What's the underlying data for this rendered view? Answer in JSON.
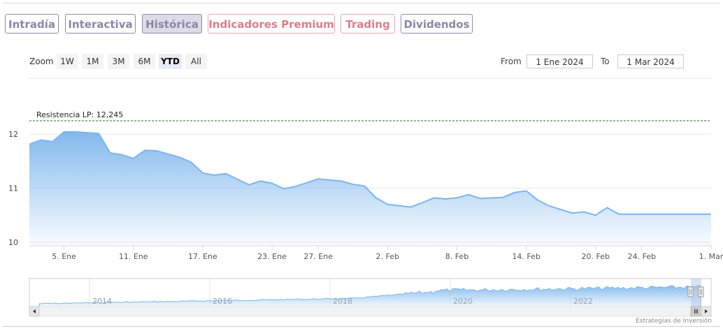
{
  "tabs": [
    {
      "label": "Intradía",
      "style": "muted"
    },
    {
      "label": "Interactiva",
      "style": "muted"
    },
    {
      "label": "Histórica",
      "style": "active"
    },
    {
      "label": "Indicadores Premium",
      "style": "red"
    },
    {
      "label": "Trading",
      "style": "red"
    },
    {
      "label": "Dividendos",
      "style": "muted"
    }
  ],
  "range_selector": {
    "zoom_label": "Zoom",
    "buttons": [
      "1W",
      "1M",
      "3M",
      "6M",
      "YTD",
      "All"
    ],
    "selected": "YTD",
    "from_label": "From",
    "from_value": "1 Ene 2024",
    "to_label": "To",
    "to_value": "1 Mar 2024"
  },
  "credits": "Estrategias de Inversión",
  "colors": {
    "line": "#7cb5ec",
    "area_top": "#7cb5ec",
    "plotline": "#1f6b1f",
    "tab_muted": "#8a86a6",
    "tab_red": "#e07b88"
  },
  "chart_data": {
    "type": "area",
    "title": "",
    "xlabel": "",
    "ylabel": "",
    "ylim": [
      10,
      12.2
    ],
    "yticks": [
      10,
      11,
      12
    ],
    "x_range": [
      "2024-01-02",
      "2024-03-01"
    ],
    "xticks": [
      {
        "date": "2024-01-05",
        "label": "5. Ene"
      },
      {
        "date": "2024-01-11",
        "label": "11. Ene"
      },
      {
        "date": "2024-01-17",
        "label": "17. Ene"
      },
      {
        "date": "2024-01-23",
        "label": "23. Ene"
      },
      {
        "date": "2024-01-27",
        "label": "27. Ene"
      },
      {
        "date": "2024-02-02",
        "label": "2. Feb"
      },
      {
        "date": "2024-02-08",
        "label": "8. Feb"
      },
      {
        "date": "2024-02-14",
        "label": "14. Feb"
      },
      {
        "date": "2024-02-20",
        "label": "20. Feb"
      },
      {
        "date": "2024-02-24",
        "label": "24. Feb"
      },
      {
        "date": "2024-03-01",
        "label": "1. Mar"
      }
    ],
    "series": [
      {
        "x": [
          "2024-01-02",
          "2024-01-03",
          "2024-01-04",
          "2024-01-05",
          "2024-01-06",
          "2024-01-08",
          "2024-01-09",
          "2024-01-10",
          "2024-01-11",
          "2024-01-12",
          "2024-01-13",
          "2024-01-15",
          "2024-01-16",
          "2024-01-17",
          "2024-01-18",
          "2024-01-19",
          "2024-01-21",
          "2024-01-22",
          "2024-01-23",
          "2024-01-24",
          "2024-01-25",
          "2024-01-26",
          "2024-01-27",
          "2024-01-29",
          "2024-01-30",
          "2024-01-31",
          "2024-02-01",
          "2024-02-02",
          "2024-02-04",
          "2024-02-05",
          "2024-02-06",
          "2024-02-07",
          "2024-02-08",
          "2024-02-09",
          "2024-02-10",
          "2024-02-12",
          "2024-02-13",
          "2024-02-14",
          "2024-02-15",
          "2024-02-16",
          "2024-02-18",
          "2024-02-19",
          "2024-02-20",
          "2024-02-21",
          "2024-02-22",
          "2024-02-23",
          "2024-02-25",
          "2024-02-26",
          "2024-02-27",
          "2024-02-28",
          "2024-02-29",
          "2024-03-01"
        ],
        "values": [
          11.81,
          11.89,
          11.86,
          12.04,
          12.04,
          12.01,
          11.65,
          11.62,
          11.55,
          11.7,
          11.69,
          11.57,
          11.48,
          11.28,
          11.24,
          11.27,
          11.06,
          11.13,
          11.09,
          10.99,
          11.03,
          11.1,
          11.17,
          11.13,
          11.07,
          11.04,
          10.82,
          10.7,
          10.65,
          10.73,
          10.82,
          10.8,
          10.82,
          10.88,
          10.81,
          10.83,
          10.92,
          10.95,
          10.78,
          10.67,
          10.54,
          10.56,
          10.5,
          10.64,
          10.52,
          10.52,
          10.52,
          10.52,
          10.52,
          10.52,
          10.52,
          10.52
        ]
      }
    ],
    "plot_lines": [
      {
        "value": 12.245,
        "label": "Resistencia LP: 12,245",
        "style": "dashed"
      }
    ],
    "navigator": {
      "xticks": [
        "2014",
        "2016",
        "2018",
        "2020",
        "2022"
      ]
    }
  }
}
